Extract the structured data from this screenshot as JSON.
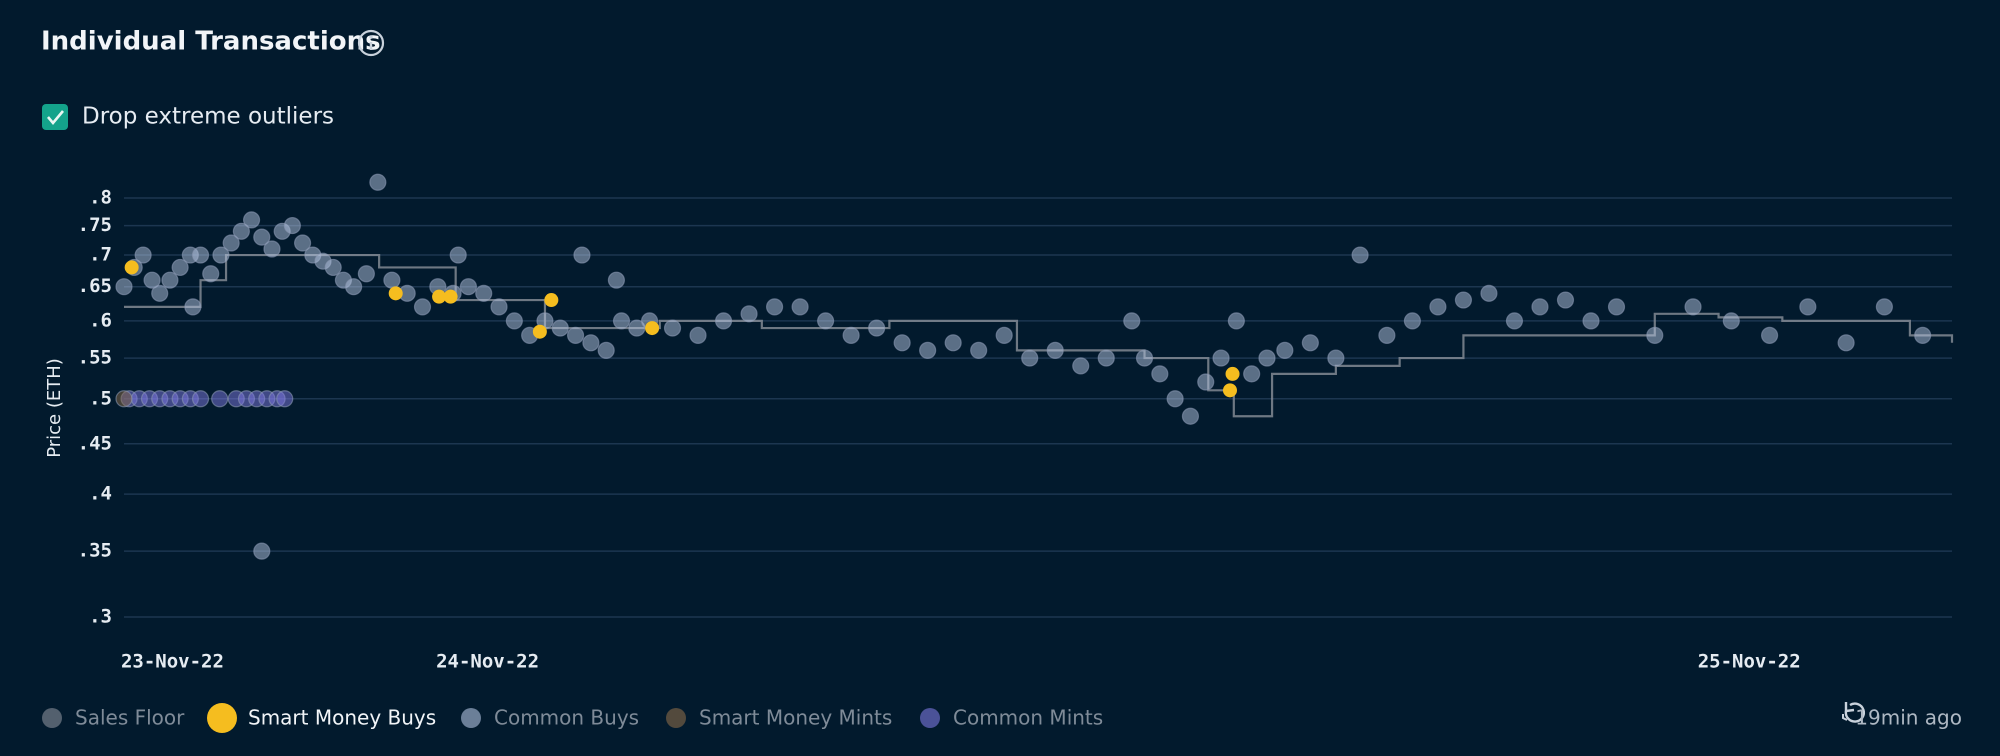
{
  "chart_data": {
    "type": "scatter",
    "title": "Individual Transactions",
    "option_label": "Drop extreme outliers",
    "y_label": "Price (ETH)",
    "updated": "19min ago",
    "log_y": true,
    "grid": true,
    "xlim": [
      0,
      1433
    ],
    "xticks": [
      {
        "value": 38,
        "label": "23-Nov-22"
      },
      {
        "value": 285,
        "label": "24-Nov-22"
      },
      {
        "value": 1274,
        "label": "25-Nov-22"
      }
    ],
    "ylim": [
      0.3,
      0.8
    ],
    "yticks": [
      {
        "value": 0.8,
        "label": ".8"
      },
      {
        "value": 0.75,
        "label": ".75"
      },
      {
        "value": 0.7,
        "label": ".7"
      },
      {
        "value": 0.65,
        "label": ".65"
      },
      {
        "value": 0.6,
        "label": ".6"
      },
      {
        "value": 0.55,
        "label": ".55"
      },
      {
        "value": 0.5,
        "label": ".5"
      },
      {
        "value": 0.45,
        "label": ".45"
      },
      {
        "value": 0.4,
        "label": ".4"
      },
      {
        "value": 0.35,
        "label": ".35"
      },
      {
        "value": 0.3,
        "label": ".3"
      }
    ],
    "series": [
      {
        "name": "Sales Floor",
        "color": "#8a9099",
        "mark": "line",
        "x": [
          0,
          60,
          80,
          130,
          140,
          200,
          260,
          330,
          420,
          500,
          600,
          700,
          800,
          850,
          870,
          900,
          950,
          1000,
          1050,
          1100,
          1200,
          1250,
          1300,
          1400,
          1433
        ],
        "values": [
          0.62,
          0.66,
          0.7,
          0.7,
          0.7,
          0.68,
          0.63,
          0.59,
          0.6,
          0.59,
          0.6,
          0.56,
          0.55,
          0.51,
          0.48,
          0.53,
          0.54,
          0.55,
          0.58,
          0.58,
          0.61,
          0.605,
          0.6,
          0.58,
          0.57
        ]
      },
      {
        "name": "Smart Money Buys",
        "color": "#f5bd1f",
        "mark": "point",
        "x": [
          6,
          213,
          247,
          256,
          326,
          335,
          414,
          869,
          867
        ],
        "values": [
          0.68,
          0.64,
          0.635,
          0.635,
          0.585,
          0.63,
          0.59,
          0.53,
          0.51
        ]
      },
      {
        "name": "Common Buys",
        "color": "#b3c3e0",
        "mark": "point",
        "x": [
          0,
          8,
          15,
          22,
          28,
          36,
          44,
          52,
          60,
          68,
          76,
          84,
          92,
          100,
          108,
          116,
          124,
          132,
          140,
          148,
          156,
          164,
          172,
          180,
          190,
          199,
          210,
          222,
          234,
          246,
          258,
          270,
          282,
          294,
          306,
          318,
          330,
          342,
          354,
          366,
          378,
          390,
          402,
          412,
          430,
          450,
          470,
          490,
          510,
          530,
          550,
          570,
          590,
          610,
          630,
          650,
          670,
          690,
          710,
          730,
          750,
          770,
          790,
          800,
          812,
          824,
          836,
          848,
          860,
          872,
          884,
          896,
          910,
          930,
          950,
          969,
          990,
          1010,
          1030,
          1050,
          1070,
          1090,
          1110,
          1130,
          1150,
          1170,
          1200,
          1230,
          1260,
          1290,
          1320,
          1350,
          1380,
          1410,
          108,
          54,
          359,
          386,
          262
        ],
        "values": [
          0.65,
          0.68,
          0.7,
          0.66,
          0.64,
          0.66,
          0.68,
          0.7,
          0.7,
          0.67,
          0.7,
          0.72,
          0.74,
          0.76,
          0.73,
          0.71,
          0.74,
          0.75,
          0.72,
          0.7,
          0.69,
          0.68,
          0.66,
          0.65,
          0.67,
          0.83,
          0.66,
          0.64,
          0.62,
          0.65,
          0.64,
          0.65,
          0.64,
          0.62,
          0.6,
          0.58,
          0.6,
          0.59,
          0.58,
          0.57,
          0.56,
          0.6,
          0.59,
          0.6,
          0.59,
          0.58,
          0.6,
          0.61,
          0.62,
          0.62,
          0.6,
          0.58,
          0.59,
          0.57,
          0.56,
          0.57,
          0.56,
          0.58,
          0.55,
          0.56,
          0.54,
          0.55,
          0.6,
          0.55,
          0.53,
          0.5,
          0.48,
          0.52,
          0.55,
          0.6,
          0.53,
          0.55,
          0.56,
          0.57,
          0.55,
          0.7,
          0.58,
          0.6,
          0.62,
          0.63,
          0.64,
          0.6,
          0.62,
          0.63,
          0.6,
          0.62,
          0.58,
          0.62,
          0.6,
          0.58,
          0.62,
          0.57,
          0.62,
          0.58,
          0.35,
          0.62,
          0.7,
          0.66,
          0.7
        ]
      },
      {
        "name": "Smart Money Mints",
        "color": "#8a6a48",
        "mark": "point",
        "x": [
          0
        ],
        "values": [
          0.5
        ]
      },
      {
        "name": "Common Mints",
        "color": "#7d78e0",
        "mark": "point",
        "x": [
          4,
          12,
          20,
          28,
          36,
          44,
          52,
          60,
          75,
          88,
          96,
          104,
          112,
          120,
          126
        ],
        "values": [
          0.5,
          0.5,
          0.5,
          0.5,
          0.5,
          0.5,
          0.5,
          0.5,
          0.5,
          0.5,
          0.5,
          0.5,
          0.5,
          0.5,
          0.5
        ]
      }
    ],
    "active_series": "Smart Money Buys"
  }
}
